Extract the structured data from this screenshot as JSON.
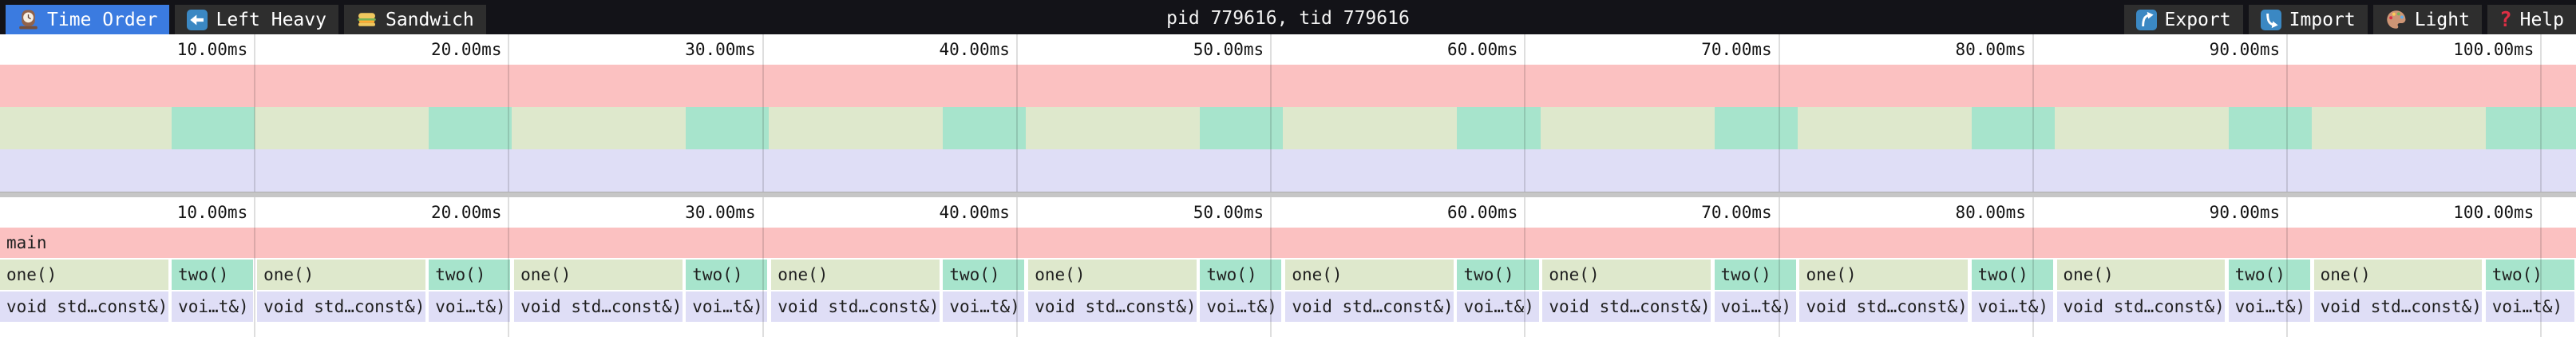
{
  "toolbar": {
    "tabs": [
      {
        "label": "Time Order",
        "icon": "mantel-clock-icon",
        "active": true
      },
      {
        "label": "Left Heavy",
        "icon": "left-arrow-icon",
        "active": false
      },
      {
        "label": "Sandwich",
        "icon": "sandwich-icon",
        "active": false
      }
    ],
    "title": "pid 779616, tid 779616",
    "actions": [
      {
        "label": "Export",
        "icon": "export-icon"
      },
      {
        "label": "Import",
        "icon": "import-icon"
      },
      {
        "label": "Light",
        "icon": "palette-icon"
      },
      {
        "label": "Help",
        "icon": "help-icon"
      }
    ],
    "colors": {
      "bar_bg": "#131318",
      "tab_bg": "#2e2e2e",
      "active_tab_bg": "#3b7be0",
      "text": "#ffffff"
    }
  },
  "chart_data": {
    "type": "flamegraph",
    "unit": "ms",
    "total_ms": 101.4,
    "axis_ticks": [
      {
        "ms": 10,
        "label": "10.00ms"
      },
      {
        "ms": 20,
        "label": "20.00ms"
      },
      {
        "ms": 30,
        "label": "30.00ms"
      },
      {
        "ms": 40,
        "label": "40.00ms"
      },
      {
        "ms": 50,
        "label": "50.00ms"
      },
      {
        "ms": 60,
        "label": "60.00ms"
      },
      {
        "ms": 70,
        "label": "70.00ms"
      },
      {
        "ms": 80,
        "label": "80.00ms"
      },
      {
        "ms": 90,
        "label": "90.00ms"
      },
      {
        "ms": 100,
        "label": "100.00ms"
      }
    ],
    "palette": {
      "main": "#fbc1c1",
      "one": "#dee8cc",
      "two": "#a7e4cc",
      "void": "#dfdef6"
    },
    "levels": [
      {
        "depth": 0,
        "frames": [
          {
            "name": "main",
            "start_ms": 0,
            "end_ms": 101.4,
            "color": "main"
          }
        ]
      },
      {
        "depth": 1,
        "frames": [
          {
            "name": "one()",
            "start_ms": 0.0,
            "end_ms": 6.69,
            "color": "one"
          },
          {
            "name": "two()",
            "start_ms": 6.76,
            "end_ms": 10.03,
            "color": "two"
          },
          {
            "name": "one()",
            "start_ms": 10.12,
            "end_ms": 16.81,
            "color": "one"
          },
          {
            "name": "two()",
            "start_ms": 16.88,
            "end_ms": 20.15,
            "color": "two"
          },
          {
            "name": "one()",
            "start_ms": 20.24,
            "end_ms": 26.93,
            "color": "one"
          },
          {
            "name": "two()",
            "start_ms": 27.0,
            "end_ms": 30.27,
            "color": "two"
          },
          {
            "name": "one()",
            "start_ms": 30.36,
            "end_ms": 37.05,
            "color": "one"
          },
          {
            "name": "two()",
            "start_ms": 37.12,
            "end_ms": 40.39,
            "color": "two"
          },
          {
            "name": "one()",
            "start_ms": 40.48,
            "end_ms": 47.17,
            "color": "one"
          },
          {
            "name": "two()",
            "start_ms": 47.24,
            "end_ms": 50.51,
            "color": "two"
          },
          {
            "name": "one()",
            "start_ms": 50.6,
            "end_ms": 57.29,
            "color": "one"
          },
          {
            "name": "two()",
            "start_ms": 57.36,
            "end_ms": 60.63,
            "color": "two"
          },
          {
            "name": "one()",
            "start_ms": 60.72,
            "end_ms": 67.41,
            "color": "one"
          },
          {
            "name": "two()",
            "start_ms": 67.48,
            "end_ms": 70.75,
            "color": "two"
          },
          {
            "name": "one()",
            "start_ms": 70.84,
            "end_ms": 77.53,
            "color": "one"
          },
          {
            "name": "two()",
            "start_ms": 77.6,
            "end_ms": 80.87,
            "color": "two"
          },
          {
            "name": "one()",
            "start_ms": 80.96,
            "end_ms": 87.65,
            "color": "one"
          },
          {
            "name": "two()",
            "start_ms": 87.72,
            "end_ms": 90.99,
            "color": "two"
          },
          {
            "name": "one()",
            "start_ms": 91.08,
            "end_ms": 97.77,
            "color": "one"
          },
          {
            "name": "two()",
            "start_ms": 97.84,
            "end_ms": 101.4,
            "color": "two"
          }
        ]
      },
      {
        "depth": 2,
        "frames": [
          {
            "name": "void std…const&)",
            "start_ms": 0.0,
            "end_ms": 6.69,
            "color": "void"
          },
          {
            "name": "voi…t&)",
            "start_ms": 6.76,
            "end_ms": 10.03,
            "color": "void"
          },
          {
            "name": "void std…const&)",
            "start_ms": 10.12,
            "end_ms": 16.81,
            "color": "void"
          },
          {
            "name": "voi…t&)",
            "start_ms": 16.88,
            "end_ms": 20.15,
            "color": "void"
          },
          {
            "name": "void std…const&)",
            "start_ms": 20.24,
            "end_ms": 26.93,
            "color": "void"
          },
          {
            "name": "voi…t&)",
            "start_ms": 27.0,
            "end_ms": 30.27,
            "color": "void"
          },
          {
            "name": "void std…const&)",
            "start_ms": 30.36,
            "end_ms": 37.05,
            "color": "void"
          },
          {
            "name": "voi…t&)",
            "start_ms": 37.12,
            "end_ms": 40.39,
            "color": "void"
          },
          {
            "name": "void std…const&)",
            "start_ms": 40.48,
            "end_ms": 47.17,
            "color": "void"
          },
          {
            "name": "voi…t&)",
            "start_ms": 47.24,
            "end_ms": 50.51,
            "color": "void"
          },
          {
            "name": "void std…const&)",
            "start_ms": 50.6,
            "end_ms": 57.29,
            "color": "void"
          },
          {
            "name": "voi…t&)",
            "start_ms": 57.36,
            "end_ms": 60.63,
            "color": "void"
          },
          {
            "name": "void std…const&)",
            "start_ms": 60.72,
            "end_ms": 67.41,
            "color": "void"
          },
          {
            "name": "voi…t&)",
            "start_ms": 67.48,
            "end_ms": 70.75,
            "color": "void"
          },
          {
            "name": "void std…const&)",
            "start_ms": 70.84,
            "end_ms": 77.53,
            "color": "void"
          },
          {
            "name": "voi…t&)",
            "start_ms": 77.6,
            "end_ms": 80.87,
            "color": "void"
          },
          {
            "name": "void std…const&)",
            "start_ms": 80.96,
            "end_ms": 87.65,
            "color": "void"
          },
          {
            "name": "voi…t&)",
            "start_ms": 87.72,
            "end_ms": 90.99,
            "color": "void"
          },
          {
            "name": "void std…const&)",
            "start_ms": 91.08,
            "end_ms": 97.77,
            "color": "void"
          },
          {
            "name": "voi…t&)",
            "start_ms": 97.84,
            "end_ms": 101.4,
            "color": "void"
          }
        ]
      }
    ]
  }
}
